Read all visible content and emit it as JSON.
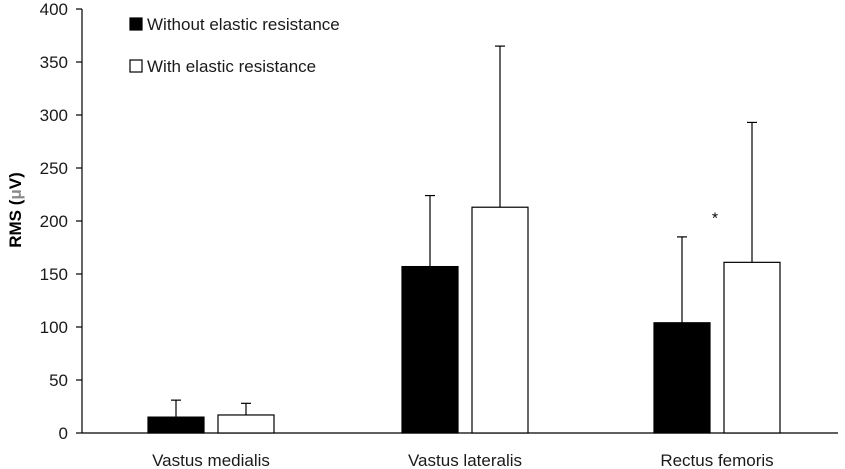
{
  "chart_data": {
    "type": "bar",
    "title": "",
    "xlabel": "",
    "ylabel": {
      "prefix": "RMS (",
      "unit_symbol": "μ",
      "suffix": "V)"
    },
    "ylim": [
      0,
      400
    ],
    "yticks": [
      0,
      50,
      100,
      150,
      200,
      250,
      300,
      350,
      400
    ],
    "grid": false,
    "legend_position": "top-left",
    "categories": [
      "Vastus medialis",
      "Vastus lateralis",
      "Rectus femoris"
    ],
    "series": [
      {
        "name": "Without elastic resistance",
        "fill": "#000000",
        "values": [
          15,
          157,
          104
        ],
        "error_upper": [
          31,
          224,
          185
        ]
      },
      {
        "name": "With elastic resistance",
        "fill": "#ffffff",
        "values": [
          17,
          213,
          161
        ],
        "error_upper": [
          28,
          365,
          293
        ]
      }
    ],
    "annotations": [
      {
        "text": "*",
        "category": "Rectus femoris",
        "y": 205
      }
    ]
  },
  "colors": {
    "axis": "#000000",
    "bar_stroke": "#000000",
    "text": "#1a1a1a"
  }
}
